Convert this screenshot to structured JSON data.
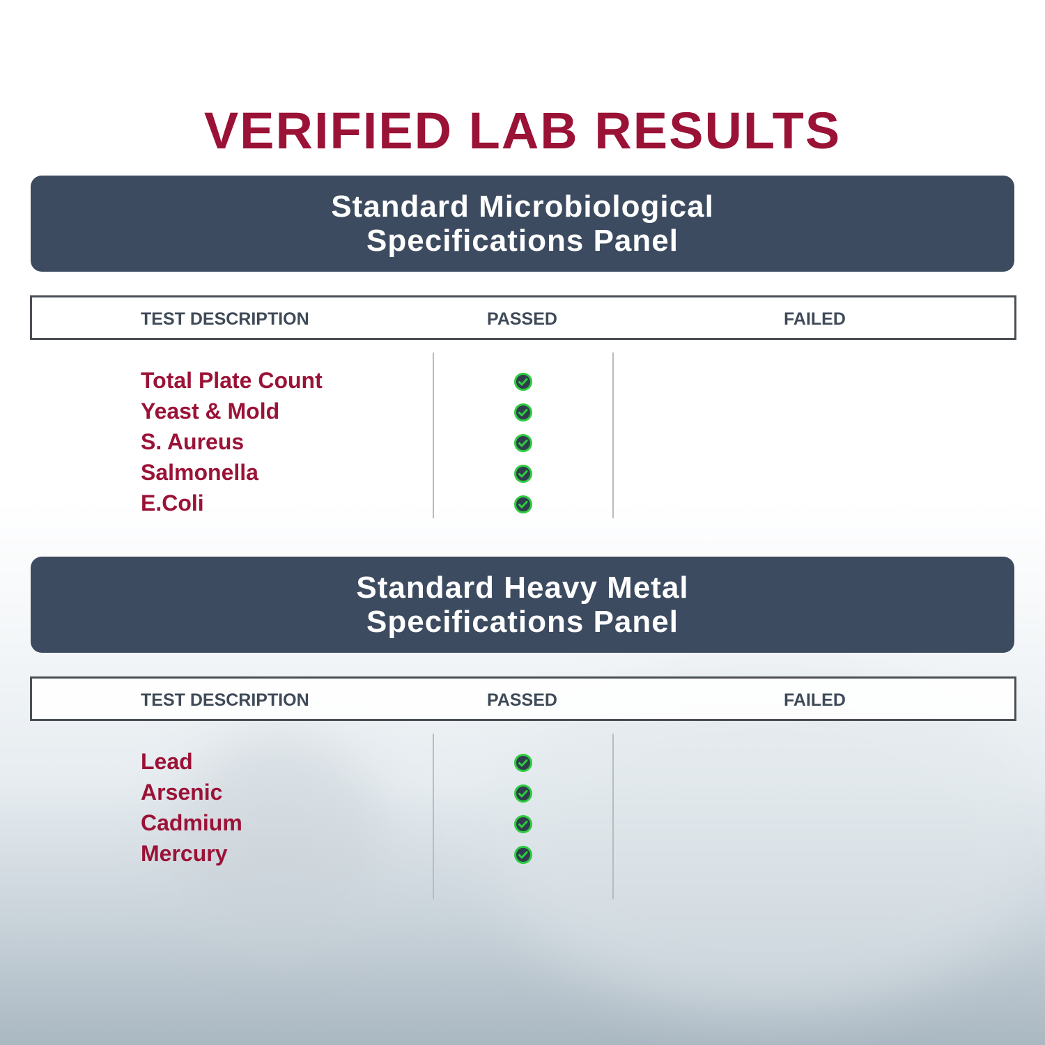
{
  "title": "VERIFIED LAB RESULTS",
  "colors": {
    "accent": "#9b1237",
    "banner": "#3c4b5f",
    "pass": "#2ecc40"
  },
  "panels": [
    {
      "title_line1": "Standard Microbiological",
      "title_line2": "Specifications Panel",
      "headers": {
        "description": "TEST DESCRIPTION",
        "passed": "PASSED",
        "failed": "FAILED"
      },
      "tests": [
        {
          "name": "Total Plate Count",
          "result": "passed",
          "icon": "check-circle-icon"
        },
        {
          "name": "Yeast & Mold",
          "result": "passed",
          "icon": "check-circle-icon"
        },
        {
          "name": "S. Aureus",
          "result": "passed",
          "icon": "check-circle-icon"
        },
        {
          "name": "Salmonella",
          "result": "passed",
          "icon": "check-circle-icon"
        },
        {
          "name": "E.Coli",
          "result": "passed",
          "icon": "check-circle-icon"
        }
      ]
    },
    {
      "title_line1": "Standard Heavy Metal",
      "title_line2": "Specifications Panel",
      "headers": {
        "description": "TEST DESCRIPTION",
        "passed": "PASSED",
        "failed": "FAILED"
      },
      "tests": [
        {
          "name": "Lead",
          "result": "passed",
          "icon": "check-circle-icon"
        },
        {
          "name": "Arsenic",
          "result": "passed",
          "icon": "check-circle-icon"
        },
        {
          "name": "Cadmium",
          "result": "passed",
          "icon": "check-circle-icon"
        },
        {
          "name": "Mercury",
          "result": "passed",
          "icon": "check-circle-icon"
        }
      ]
    }
  ]
}
